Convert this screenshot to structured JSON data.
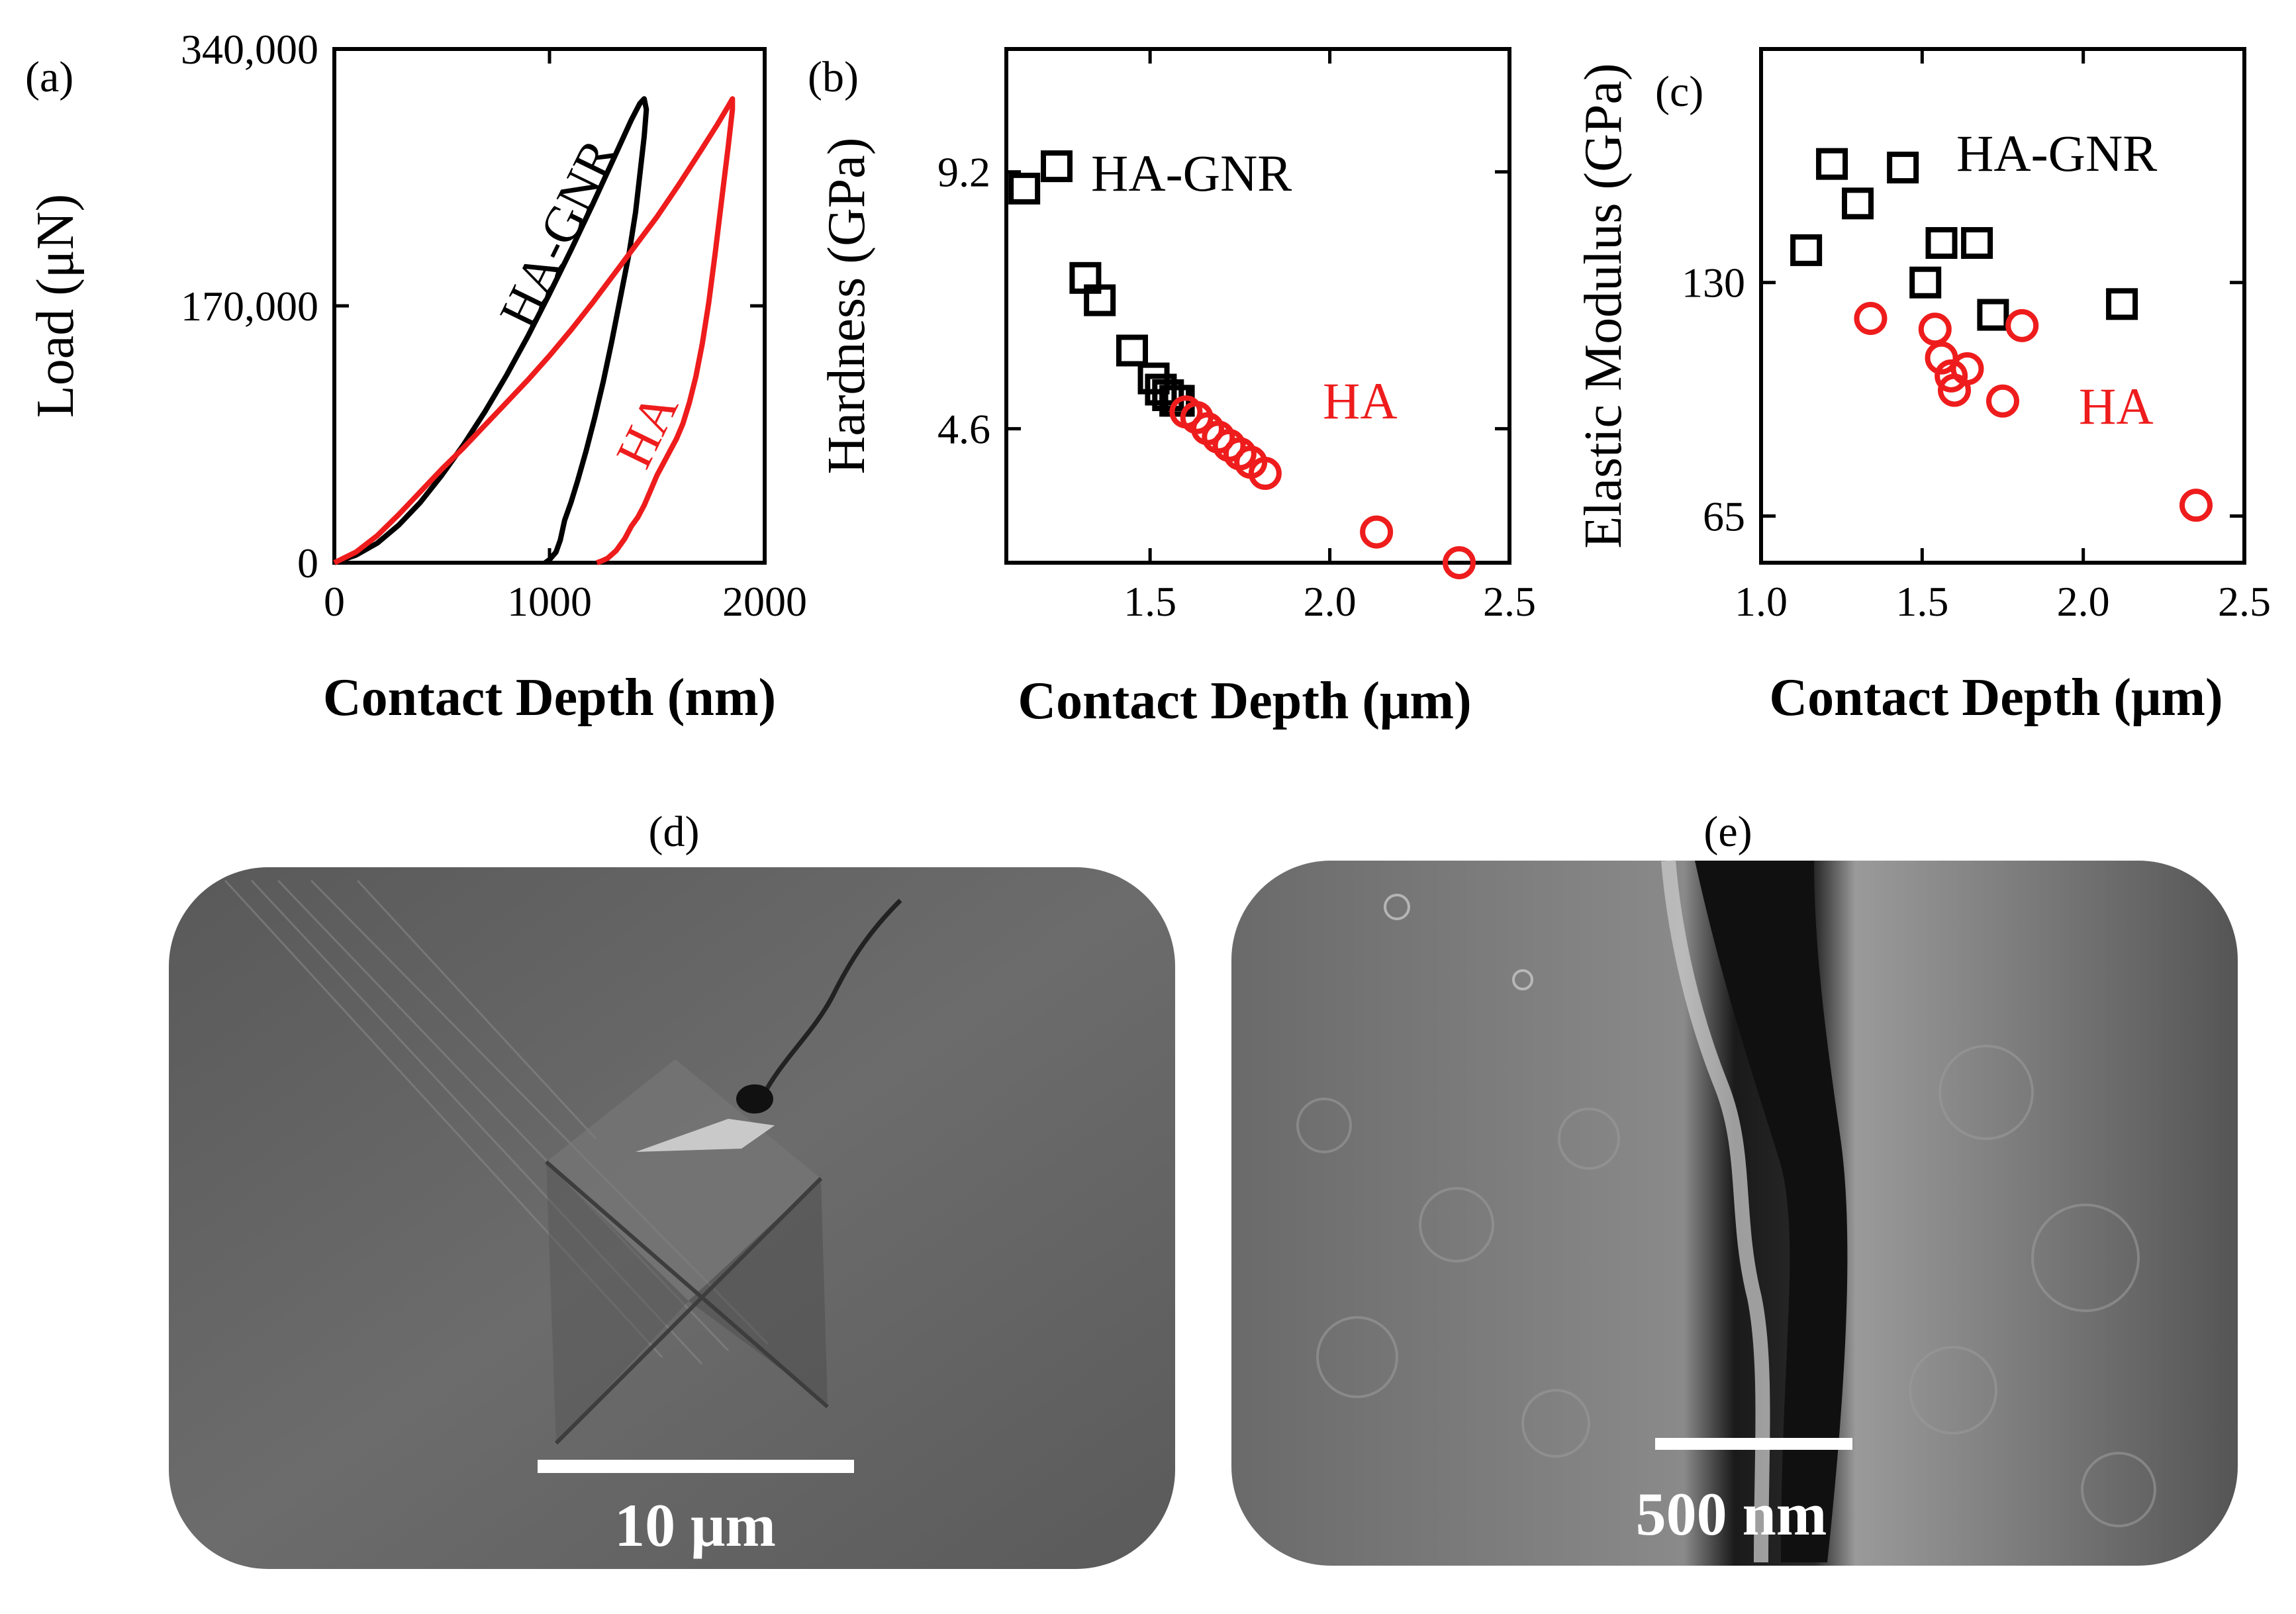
{
  "colors": {
    "ha_gnr": "#000000",
    "ha": "#ee1c1c"
  },
  "chart_data": [
    {
      "panel": "(a)",
      "type": "line",
      "xlabel": "Contact Depth (nm)",
      "ylabel": "Load (μN)",
      "xlim": [
        0,
        2000
      ],
      "ylim": [
        0,
        340000
      ],
      "xticks": [
        "0",
        "1000",
        "2000"
      ],
      "yticks": [
        "0",
        "170,000",
        "340,000"
      ],
      "grid": false,
      "series": [
        {
          "name": "HA-GNR",
          "color": "#000000",
          "x": [
            0,
            100,
            200,
            300,
            400,
            500,
            600,
            700,
            800,
            900,
            1000,
            1100,
            1200,
            1300,
            1380,
            1420,
            1440,
            1450,
            1440,
            1420,
            1400,
            1370,
            1330,
            1290,
            1250,
            1210,
            1170,
            1130,
            1100,
            1070,
            1050,
            1030,
            1000,
            980
          ],
          "y": [
            0,
            5000,
            13000,
            25000,
            40000,
            58000,
            78000,
            100000,
            124000,
            150000,
            178000,
            207000,
            237000,
            268000,
            293000,
            304000,
            307000,
            300000,
            282000,
            257000,
            232000,
            205000,
            176000,
            147000,
            120000,
            96000,
            74000,
            54000,
            40000,
            28000,
            15000,
            7000,
            2000,
            0
          ]
        },
        {
          "name": "HA",
          "color": "#ee1c1c",
          "x": [
            0,
            100,
            200,
            300,
            400,
            500,
            600,
            700,
            800,
            900,
            1000,
            1100,
            1200,
            1300,
            1400,
            1500,
            1600,
            1700,
            1780,
            1830,
            1850,
            1850,
            1830,
            1800,
            1770,
            1740,
            1710,
            1680,
            1650,
            1620,
            1590,
            1560,
            1530,
            1500,
            1470,
            1440,
            1410,
            1380,
            1350,
            1310,
            1270,
            1240,
            1220
          ],
          "y": [
            0,
            7000,
            18000,
            32000,
            47000,
            62000,
            76000,
            91000,
            106000,
            121000,
            137000,
            154000,
            172000,
            191000,
            210000,
            229000,
            250000,
            272000,
            290000,
            302000,
            307000,
            300000,
            275000,
            240000,
            205000,
            172000,
            145000,
            123000,
            106000,
            92000,
            82000,
            74000,
            66000,
            58000,
            48000,
            38000,
            30000,
            24000,
            16000,
            8000,
            3000,
            1000,
            0
          ]
        }
      ],
      "annotations": [
        {
          "text": "HA-GNR",
          "color": "#000000"
        },
        {
          "text": "HA",
          "color": "#ee1c1c"
        }
      ]
    },
    {
      "panel": "(b)",
      "type": "scatter",
      "xlabel": "Contact Depth (μm)",
      "ylabel": "Hardness (GPa)",
      "xlim": [
        1.1,
        2.5
      ],
      "ylim": [
        2.2,
        11.4
      ],
      "xticks": [
        "1.5",
        "2.0",
        "2.5"
      ],
      "yticks": [
        "4.6",
        "9.2"
      ],
      "grid": false,
      "series": [
        {
          "name": "HA-GNR",
          "marker": "square",
          "color": "#000000",
          "x": [
            1.15,
            1.24,
            1.32,
            1.36,
            1.45,
            1.51,
            1.53,
            1.55,
            1.57,
            1.58
          ],
          "y": [
            8.9,
            9.3,
            7.3,
            6.9,
            6.0,
            5.5,
            5.3,
            5.2,
            5.1,
            5.1
          ]
        },
        {
          "name": "HA",
          "marker": "circle",
          "color": "#ee1c1c",
          "x": [
            1.6,
            1.63,
            1.66,
            1.69,
            1.72,
            1.75,
            1.78,
            1.82,
            2.13,
            2.36
          ],
          "y": [
            4.9,
            4.8,
            4.6,
            4.45,
            4.3,
            4.15,
            4.0,
            3.8,
            2.75,
            2.2
          ]
        }
      ],
      "annotations": [
        {
          "text": "HA-GNR",
          "color": "#000000"
        },
        {
          "text": "HA",
          "color": "#ee1c1c"
        }
      ]
    },
    {
      "panel": "(c)",
      "type": "scatter",
      "xlabel": "Contact Depth (μm)",
      "ylabel": "Elastic Modulus (GPa)",
      "xlim": [
        1.0,
        2.5
      ],
      "ylim": [
        52,
        195
      ],
      "xticks": [
        "1.0",
        "1.5",
        "2.0",
        "2.5"
      ],
      "yticks": [
        "65",
        "130"
      ],
      "grid": false,
      "series": [
        {
          "name": "HA-GNR",
          "marker": "square",
          "color": "#000000",
          "x": [
            1.14,
            1.22,
            1.3,
            1.44,
            1.51,
            1.56,
            1.67,
            1.72,
            2.12
          ],
          "y": [
            139,
            163,
            152,
            162,
            130,
            141,
            141,
            121,
            124
          ]
        },
        {
          "name": "HA",
          "marker": "circle",
          "color": "#ee1c1c",
          "x": [
            1.34,
            1.54,
            1.56,
            1.59,
            1.64,
            1.6,
            1.75,
            1.81,
            2.35
          ],
          "y": [
            120,
            117,
            109,
            104,
            106,
            100,
            97,
            118,
            68
          ]
        }
      ],
      "annotations": [
        {
          "text": "HA-GNR",
          "color": "#000000"
        },
        {
          "text": "HA",
          "color": "#ee1c1c"
        }
      ]
    }
  ],
  "images": [
    {
      "panel": "(d)",
      "scale_bar": "10 μm"
    },
    {
      "panel": "(e)",
      "scale_bar": "500 nm"
    }
  ]
}
